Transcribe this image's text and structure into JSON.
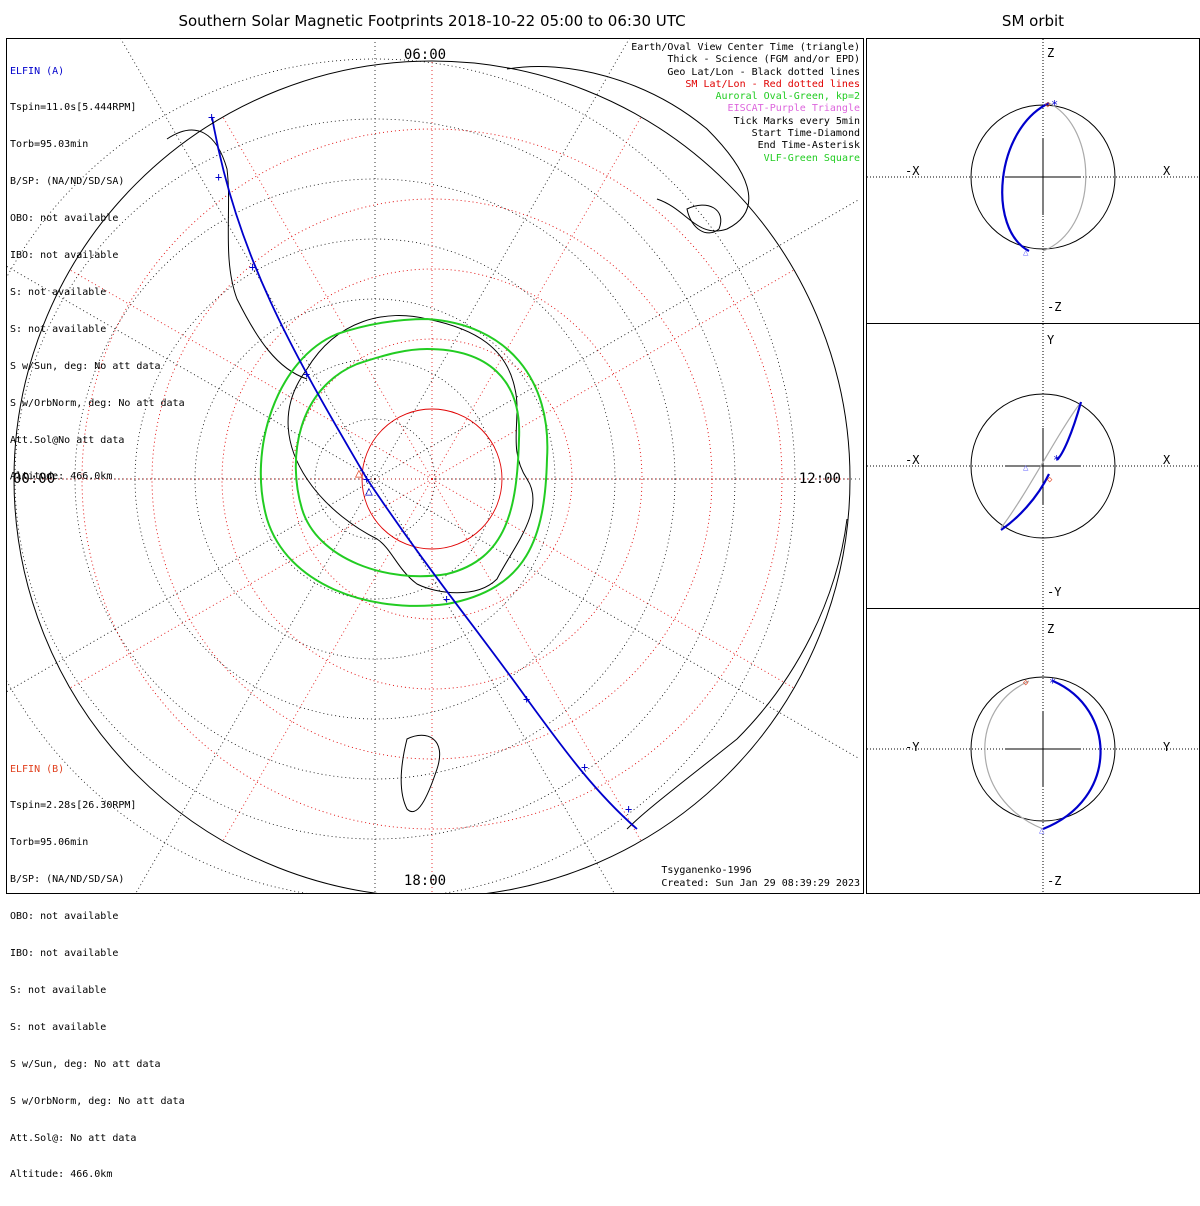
{
  "title": "Southern Solar Magnetic Footprints 2018-10-22 05:00 to 06:30 UTC",
  "orbit_title": "SM orbit",
  "map": {
    "time_labels": {
      "top": "06:00",
      "left": "00:00",
      "right": "12:00",
      "bottom": "18:00"
    }
  },
  "sat_a": {
    "name": "ELFIN (A)",
    "color": "#0000cc",
    "lines": [
      "Tspin=11.0s[5.444RPM]",
      "Torb=95.03min",
      "B/SP: (NA/ND/SD/SA)",
      "OBO: not available",
      "IBO: not available",
      "S: not available",
      "S: not available",
      "S w/Sun, deg: No att data",
      "S w/OrbNorm, deg: No att data",
      "Att.Sol@No att data",
      "Altitude: 466.0km"
    ]
  },
  "sat_b": {
    "name": "ELFIN (B)",
    "color": "#e0401e",
    "lines": [
      "Tspin=2.28s[26.30RPM]",
      "Torb=95.06min",
      "B/SP: (NA/ND/SD/SA)",
      "OBO: not available",
      "IBO: not available",
      "S: not available",
      "S: not available",
      "S w/Sun, deg: No att data",
      "S w/OrbNorm, deg: No att data",
      "Att.Sol@: No att data",
      "Altitude: 466.0km"
    ]
  },
  "legend": [
    {
      "text": "Earth/Oval View Center Time (triangle)",
      "color": "#000000"
    },
    {
      "text": "Thick - Science (FGM and/or EPD)",
      "color": "#000000"
    },
    {
      "text": "Geo Lat/Lon - Black dotted lines",
      "color": "#000000"
    },
    {
      "text": "SM Lat/Lon - Red dotted lines",
      "color": "#e00000"
    },
    {
      "text": "Auroral Oval-Green, kp=2",
      "color": "#22cc22"
    },
    {
      "text": "EISCAT-Purple Triangle",
      "color": "#dd66dd"
    },
    {
      "text": "Tick Marks every 5min",
      "color": "#000000"
    },
    {
      "text": "Start Time-Diamond",
      "color": "#000000"
    },
    {
      "text": "End Time-Asterisk",
      "color": "#000000"
    },
    {
      "text": "VLF-Green Square",
      "color": "#22cc22"
    }
  ],
  "footer": {
    "model": "Tsyganenko-1996",
    "created": "Created: Sun Jan 29 08:39:29 2023"
  },
  "orbit_panels": [
    {
      "top": "Z",
      "bottom": "-Z",
      "left": "-X",
      "right": "X"
    },
    {
      "top": "Y",
      "bottom": "-Y",
      "left": "-X",
      "right": "X"
    },
    {
      "top": "Z",
      "bottom": "-Z",
      "left": "-Y",
      "right": "Y"
    }
  ]
}
